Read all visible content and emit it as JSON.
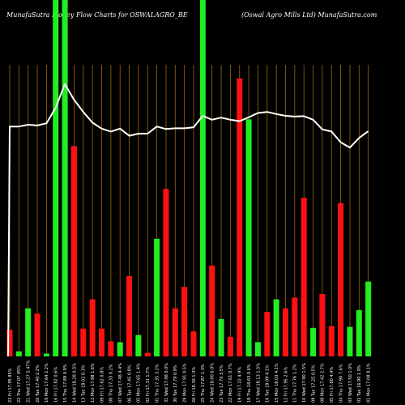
{
  "header": {
    "left_title": "MunafaSutra  Money Flow  Charts for OSWALAGRO_BE",
    "right_title": "(Oswal Agro   Mills Ltd) MunafaSutra.com"
  },
  "colors": {
    "background": "#000000",
    "up_bar": "#22ee22",
    "down_bar": "#ff1111",
    "grid_line": "#a0660a",
    "price_line": "#ffffff"
  },
  "chart_data": {
    "type": "bar",
    "title": "MunafaSutra  Money Flow  Charts for OSWALAGRO_BE",
    "subtitle": "(Oswal Agro   Mills Ltd) MunafaSutra.com",
    "y_scale": [
      0,
      100
    ],
    "bars": [
      {
        "label": "23 Fri 17.95 85%",
        "direction": "down",
        "value": 7.5
      },
      {
        "label": "22 Thu 17.07 45%",
        "direction": "up",
        "value": 1.4
      },
      {
        "label": "21 Wed 17.27 5.47%",
        "direction": "up",
        "value": 13.5
      },
      {
        "label": "20 Tue 17.40 2.2%",
        "direction": "down",
        "value": 12.0
      },
      {
        "label": "19 Mon 17.64 2.2%",
        "direction": "up",
        "value": 0.8
      },
      {
        "label": "16 Fri 17.82 0.6%",
        "direction": "up",
        "value": 100
      },
      {
        "label": "15 Thu 17.89 0.9%",
        "direction": "up",
        "value": 100
      },
      {
        "label": "14 Wed 18.28 0.5%",
        "direction": "down",
        "value": 59.0
      },
      {
        "label": "13 Tue 18.02 0.3%",
        "direction": "down",
        "value": 7.8
      },
      {
        "label": "12 Mon 17.98 1.6%",
        "direction": "down",
        "value": 16.0
      },
      {
        "label": "09 Fri 17.62 0.8%",
        "direction": "down",
        "value": 7.8
      },
      {
        "label": "08 Thu 17.33 0.2%",
        "direction": "down",
        "value": 4.2
      },
      {
        "label": "07 Wed 17.48 4.4%",
        "direction": "up",
        "value": 4.0
      },
      {
        "label": "06 Tue 17.45 0.8%",
        "direction": "down",
        "value": 22.5
      },
      {
        "label": "05 Mon 17.65 1.4%",
        "direction": "up",
        "value": 6.0
      },
      {
        "label": "02 Fri 17.31 1.7%",
        "direction": "down",
        "value": 1.0
      },
      {
        "label": "01 Thu 17.35 3.2%",
        "direction": "up",
        "value": 33.0
      },
      {
        "label": "31 Wed 17.98 0.0%",
        "direction": "down",
        "value": 47.0
      },
      {
        "label": "30 Tue 17.79 0.9%",
        "direction": "down",
        "value": 13.5
      },
      {
        "label": "29 Mon 17.91 0.5%",
        "direction": "down",
        "value": 19.5
      },
      {
        "label": "26 Fri 18.30 1.3%",
        "direction": "down",
        "value": 7.0
      },
      {
        "label": "25 Thu 17.87 1.3%",
        "direction": "up",
        "value": 100
      },
      {
        "label": "24 Wed 18.00 6.0%",
        "direction": "down",
        "value": 25.5
      },
      {
        "label": "23 Tue 17.70 3.5%",
        "direction": "up",
        "value": 10.5
      },
      {
        "label": "22 Mon 17.61 0.7%",
        "direction": "down",
        "value": 5.5
      },
      {
        "label": "19 Fri 17.22 4.9%",
        "direction": "down",
        "value": 78.0
      },
      {
        "label": "18 Thu 18.63 0.6%",
        "direction": "up",
        "value": 66.5
      },
      {
        "label": "17 Wed 18.13 1.5%",
        "direction": "up",
        "value": 4.0
      },
      {
        "label": "16 Tue 18.09 4.1%",
        "direction": "down",
        "value": 12.5
      },
      {
        "label": "15 Mon 18.03 4.1%",
        "direction": "up",
        "value": 16.0
      },
      {
        "label": "12 Fri 17.95 2.6%",
        "direction": "down",
        "value": 13.5
      },
      {
        "label": "11 Thu 17.76 1.2%",
        "direction": "down",
        "value": 16.5
      },
      {
        "label": "10 Wed 17.90 1.5%",
        "direction": "down",
        "value": 44.5
      },
      {
        "label": "09 Tue 17.25 0.5%",
        "direction": "up",
        "value": 8.0
      },
      {
        "label": "08 Mon 17.42 2.7%",
        "direction": "down",
        "value": 17.5
      },
      {
        "label": "05 Fri 17.80 4.4%",
        "direction": "down",
        "value": 8.5
      },
      {
        "label": "04 Thu 17.90 7.6%",
        "direction": "down",
        "value": 43.0
      },
      {
        "label": "03 Wed 17.50 1.0%",
        "direction": "up",
        "value": 8.3
      },
      {
        "label": "02 Tue 16.90 1.9%",
        "direction": "up",
        "value": 13.0
      },
      {
        "label": "01 Mon 17.08 9.1%",
        "direction": "up",
        "value": 21.0
      }
    ],
    "price": [
      64.5,
      64.5,
      65.0,
      64.8,
      65.4,
      69.8,
      76.4,
      72.0,
      68.6,
      65.6,
      63.9,
      63.1,
      63.9,
      61.9,
      62.5,
      62.5,
      64.5,
      63.8,
      64.0,
      64.0,
      64.3,
      67.5,
      66.4,
      67.0,
      66.4,
      66.0,
      67.1,
      68.3,
      68.6,
      68.0,
      67.5,
      67.3,
      67.4,
      66.4,
      63.7,
      63.1,
      60.1,
      58.6,
      61.3,
      63.2
    ],
    "grid": "vertical"
  }
}
